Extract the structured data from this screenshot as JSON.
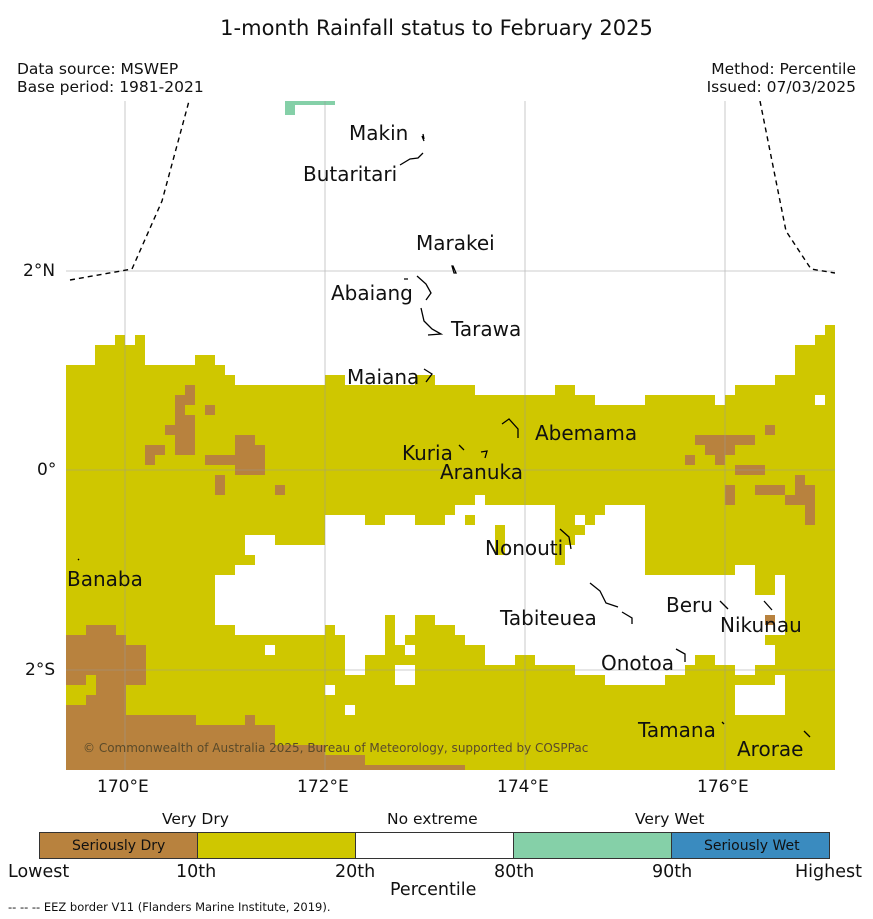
{
  "title": "1-month Rainfall status to February 2025",
  "data_source": "Data source: MSWEP",
  "base_period": "Base period: 1981-2021",
  "method": "Method: Percentile",
  "issued": "Issued: 07/03/2025",
  "copyright": "© Commonwealth of Australia 2025, Bureau of Meteorology, supported by COSPPac",
  "lon_ticks": [
    "170°E",
    "172°E",
    "174°E",
    "176°E"
  ],
  "lat_ticks": [
    "2°N",
    "0°",
    "2°S"
  ],
  "islands": [
    "Makin",
    "Butaritari",
    "Marakei",
    "Abaiang",
    "Tarawa",
    "Maiana",
    "Abemama",
    "Kuria",
    "Aranuka",
    "Nonouti",
    "Banaba",
    "Tabiteuea",
    "Beru",
    "Nikunau",
    "Onotoa",
    "Tamana",
    "Arorae"
  ],
  "legend": {
    "groups": [
      "Very Dry",
      "No extreme",
      "Very Wet"
    ],
    "categories": [
      "Seriously Dry",
      "",
      "",
      "",
      "Seriously Wet"
    ],
    "colors": [
      "#b8823e",
      "#cfc700",
      "#ffffff",
      "#85d0a8",
      "#3a8bbf"
    ],
    "percentile_ticks": [
      "Lowest",
      "10th",
      "20th",
      "80th",
      "90th",
      "Highest"
    ],
    "axis_label": "Percentile"
  },
  "eez_note": "--  --  -- EEZ border V11 (Flanders Marine Institute, 2019)."
}
